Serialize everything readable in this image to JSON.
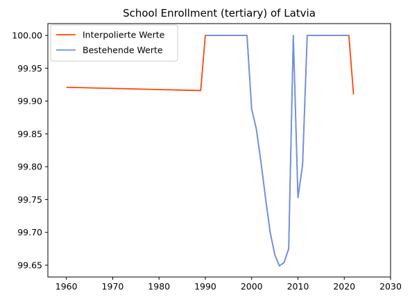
{
  "chart_data": {
    "type": "line",
    "title": "School Enrollment (tertiary) of Latvia",
    "xlabel": "",
    "ylabel": "",
    "xlim": [
      1956,
      2030
    ],
    "ylim": [
      99.632,
      100.018
    ],
    "x_ticks": [
      1960,
      1970,
      1980,
      1990,
      2000,
      2010,
      2020,
      2030
    ],
    "y_ticks": [
      99.65,
      99.7,
      99.75,
      99.8,
      99.85,
      99.9,
      99.95,
      100.0
    ],
    "y_tick_labels": [
      "99.65",
      "99.70",
      "99.75",
      "99.80",
      "99.85",
      "99.90",
      "99.95",
      "100.00"
    ],
    "grid": false,
    "legend_position": "top-left",
    "series": [
      {
        "name": "Interpolierte Werte",
        "color": "#ff4500",
        "x": [
          1960,
          1989,
          1990,
          1999,
          2000,
          2001,
          2002,
          2003,
          2004,
          2005,
          2006,
          2007,
          2008,
          2009,
          2010,
          2011,
          2012,
          2021,
          2022
        ],
        "y": [
          99.921,
          99.916,
          100.0,
          100.0,
          99.888,
          99.858,
          99.808,
          99.752,
          99.7,
          99.666,
          99.649,
          99.654,
          99.675,
          100.0,
          99.753,
          99.803,
          100.0,
          100.0,
          99.91
        ]
      },
      {
        "name": "Bestehende Werte",
        "color": "#6495ed",
        "x": [
          1990,
          1999,
          2000,
          2001,
          2002,
          2003,
          2004,
          2005,
          2006,
          2007,
          2008,
          2009,
          2010,
          2011,
          2012,
          2021
        ],
        "y": [
          100.0,
          100.0,
          99.888,
          99.858,
          99.808,
          99.752,
          99.7,
          99.666,
          99.649,
          99.654,
          99.675,
          100.0,
          99.753,
          99.803,
          100.0,
          100.0
        ]
      }
    ]
  }
}
